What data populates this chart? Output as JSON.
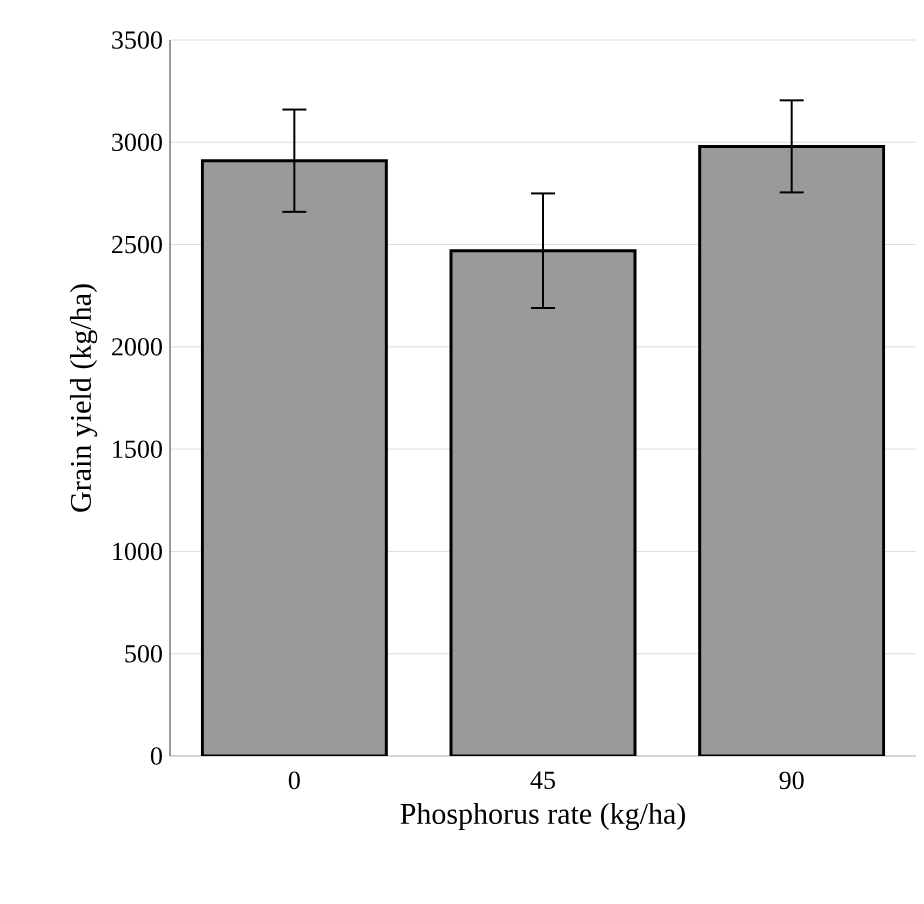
{
  "chart_data": {
    "type": "bar",
    "xlabel": "Phosphorus rate (kg/ha)",
    "ylabel": "Grain yield  (kg/ha)",
    "categories": [
      "0",
      "45",
      "90"
    ],
    "values": [
      2910,
      2470,
      2980
    ],
    "errors": [
      250,
      280,
      225
    ],
    "color": "#9a9a9a",
    "ylim": [
      0,
      3500
    ],
    "yticks": [
      0,
      500,
      1000,
      1500,
      2000,
      2500,
      3000,
      3500
    ],
    "grid": "y"
  }
}
